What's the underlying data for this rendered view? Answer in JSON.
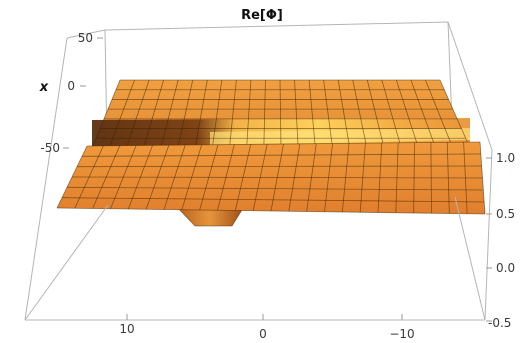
{
  "chart_data": {
    "type": "surface3d",
    "title": "Re[Φ]",
    "axes": {
      "x": {
        "label": "x",
        "ticks": [
          "50",
          "0",
          "-50"
        ]
      },
      "y": {
        "label": "",
        "ticks": [
          "10",
          "0",
          "−10"
        ]
      },
      "z": {
        "label": "",
        "ticks": [
          "1.0",
          "0.5",
          "0.0",
          "-0.5"
        ]
      }
    },
    "series": [
      {
        "surface": "upper-sheet",
        "level": 1.0,
        "fill": "#f0a040"
      },
      {
        "surface": "lower-sheet",
        "level": 0.5,
        "fill": "#e8923a"
      }
    ],
    "colors": {
      "surface_light": "#f7b14c",
      "surface_mid": "#e39038",
      "surface_dark": "#5a3012",
      "highlight": "#ffe37a",
      "gridline": "#3a2000",
      "box": "#b5b5b5"
    },
    "grid": true
  }
}
